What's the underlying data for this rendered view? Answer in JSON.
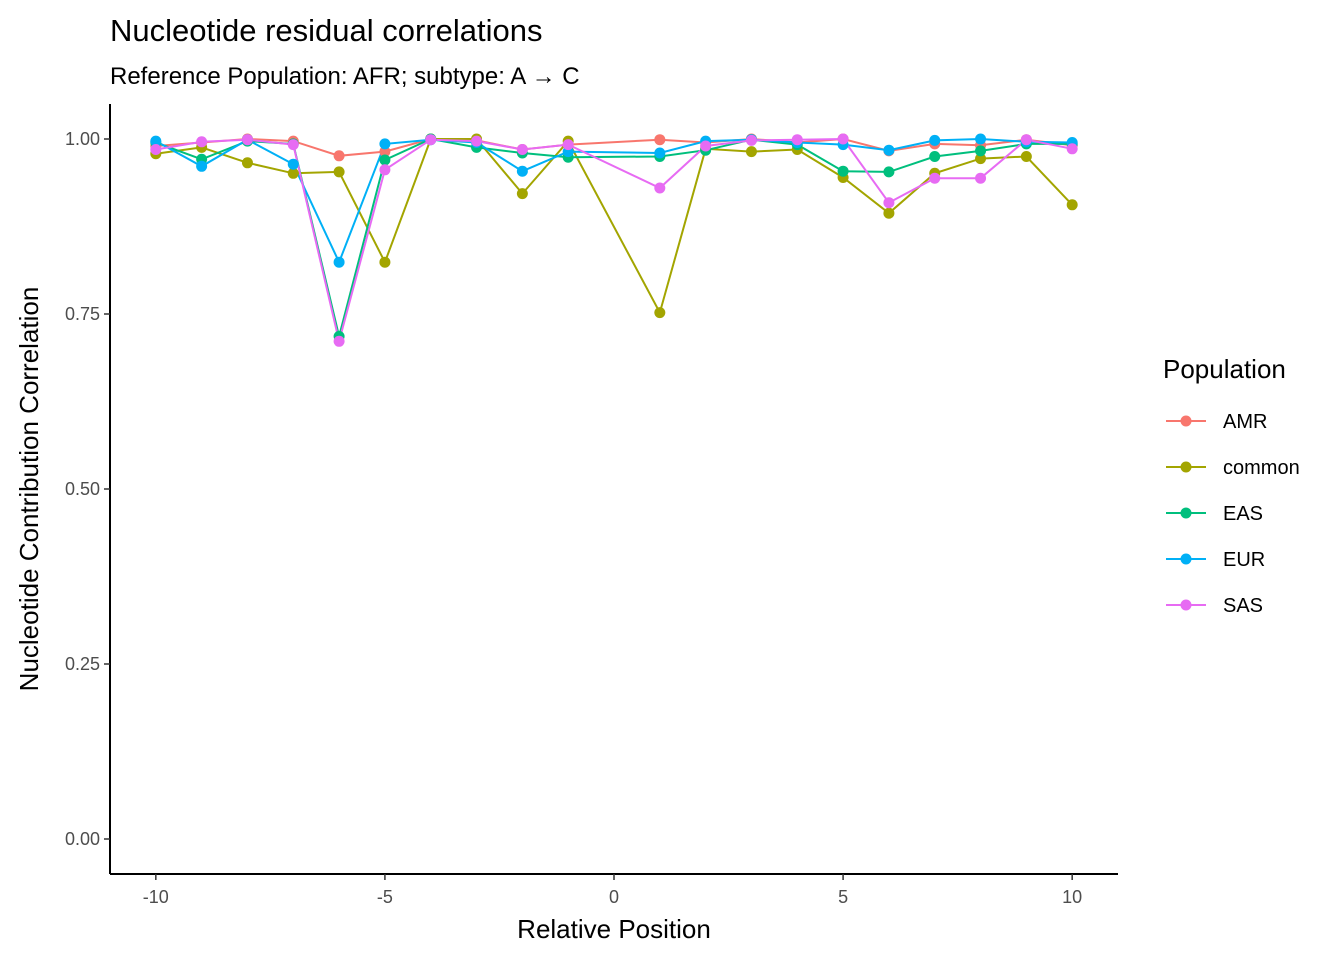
{
  "chart_data": {
    "type": "line",
    "title": "Nucleotide residual correlations",
    "subtitle": "Reference Population: AFR; subtype: A → C",
    "xlabel": "Relative Position",
    "ylabel": "Nucleotide Contribution Correlation",
    "xlim": [
      -11,
      11
    ],
    "ylim": [
      -0.05,
      1.05
    ],
    "x_ticks": [
      -10,
      -5,
      0,
      5,
      10
    ],
    "x_tick_labels": [
      "-10",
      "-5",
      "0",
      "5",
      "10"
    ],
    "y_ticks": [
      0,
      0.25,
      0.5,
      0.75,
      1.0
    ],
    "y_tick_labels": [
      "0.00",
      "0.25",
      "0.50",
      "0.75",
      "1.00"
    ],
    "grid": false,
    "legend": {
      "title": "Population",
      "position": "right"
    },
    "x": [
      -10,
      -9,
      -8,
      -7,
      -6,
      -5,
      -4,
      -3,
      -2,
      -1,
      1,
      2,
      3,
      4,
      5,
      6,
      7,
      8,
      9,
      10
    ],
    "series": [
      {
        "name": "AMR",
        "color": "#F8766D",
        "values": [
          0.99,
          0.995,
          1.0,
          0.997,
          0.976,
          0.982,
          1.0,
          0.998,
          0.985,
          0.992,
          0.999,
          0.995,
          1.0,
          0.995,
          1.0,
          0.983,
          0.993,
          0.991,
          0.999,
          0.991
        ]
      },
      {
        "name": "common",
        "color": "#A3A500",
        "values": [
          0.979,
          0.988,
          0.966,
          0.951,
          0.953,
          0.824,
          1.0,
          1.0,
          0.922,
          0.997,
          0.752,
          0.986,
          0.982,
          0.985,
          0.945,
          0.894,
          0.951,
          0.972,
          0.975,
          0.906
        ]
      },
      {
        "name": "EAS",
        "color": "#00BF7D",
        "values": [
          0.995,
          0.971,
          0.997,
          0.993,
          0.718,
          0.97,
          1.0,
          0.988,
          0.98,
          0.974,
          0.975,
          0.984,
          0.999,
          0.992,
          0.954,
          0.953,
          0.975,
          0.983,
          0.993,
          0.993
        ]
      },
      {
        "name": "EUR",
        "color": "#00B0F6",
        "values": [
          0.997,
          0.961,
          0.999,
          0.964,
          0.824,
          0.993,
          0.999,
          0.995,
          0.954,
          0.982,
          0.98,
          0.997,
          0.999,
          0.995,
          0.992,
          0.984,
          0.998,
          1.0,
          0.996,
          0.995
        ]
      },
      {
        "name": "SAS",
        "color": "#E76BF3",
        "values": [
          0.985,
          0.996,
          0.999,
          0.992,
          0.711,
          0.956,
          0.999,
          0.997,
          0.985,
          0.992,
          0.93,
          0.99,
          0.998,
          0.999,
          1.0,
          0.909,
          0.944,
          0.944,
          0.999,
          0.986
        ]
      }
    ]
  }
}
